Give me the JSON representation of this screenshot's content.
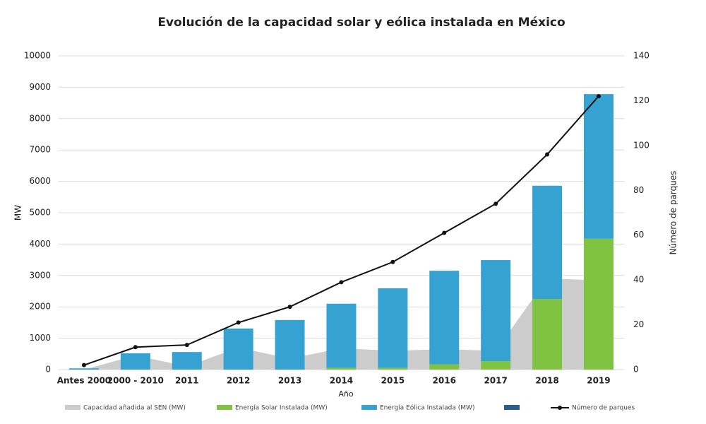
{
  "chart_data": {
    "type": "bar",
    "title": "Evolución de la capacidad solar y eólica instalada en México",
    "x_label": "Año",
    "y_label": "MW",
    "y2_label": "Número de parques",
    "categories": [
      "Antes 2000",
      "2000 - 2010",
      "2011",
      "2012",
      "2013",
      "2014",
      "2015",
      "2016",
      "2017",
      "2018",
      "2019"
    ],
    "series": [
      {
        "name": "Capacidad añadida al SEN (MW)",
        "type": "area",
        "color": "#cccccc",
        "values": [
          0,
          450,
          100,
          700,
          350,
          680,
          600,
          650,
          600,
          2900,
          2850
        ]
      },
      {
        "name": "Energía Solar Instalada (MW)",
        "type": "bar",
        "color": "#80c342",
        "values": [
          0,
          0,
          0,
          0,
          0,
          60,
          60,
          170,
          270,
          2250,
          4170
        ]
      },
      {
        "name": "Energía Eólica Instalada (MW)",
        "type": "bar",
        "color": "#36a2d1",
        "values": [
          40,
          520,
          560,
          1310,
          1580,
          2040,
          2530,
          2980,
          3220,
          3610,
          4610
        ]
      },
      {
        "name": "Número de parques",
        "type": "line",
        "axis": "y2",
        "color": "#111111",
        "values": [
          2,
          10,
          11,
          21,
          28,
          39,
          48,
          61,
          74,
          96,
          122
        ]
      }
    ],
    "ylim": [
      0,
      10000
    ],
    "yticks": [
      0,
      1000,
      2000,
      3000,
      4000,
      5000,
      6000,
      7000,
      8000,
      9000,
      10000
    ],
    "y2lim": [
      0,
      140
    ],
    "y2ticks": [
      0,
      20,
      40,
      60,
      80,
      100,
      120,
      140
    ],
    "grid": true,
    "legend": "bottom"
  }
}
